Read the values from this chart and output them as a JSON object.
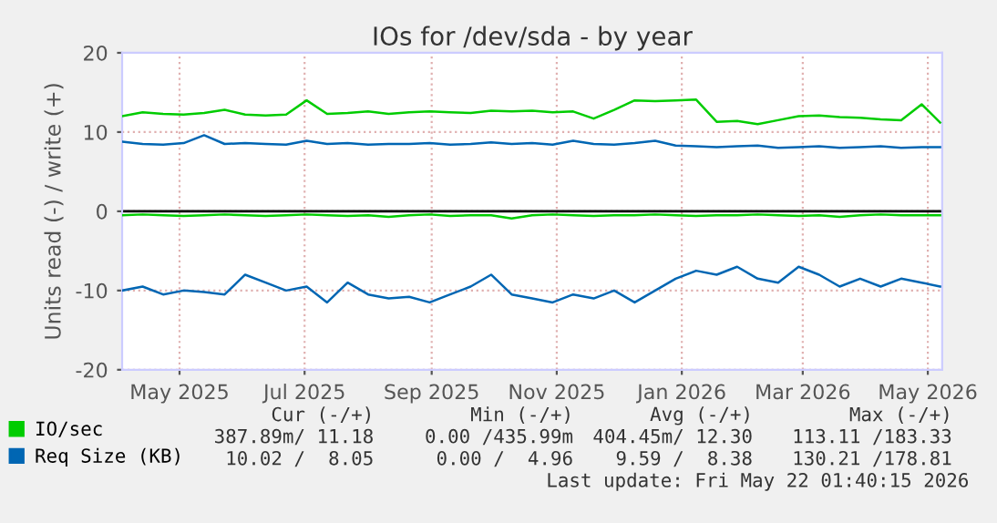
{
  "chart_data": {
    "type": "line",
    "title": "IOs for /dev/sda - by year",
    "ylabel": "Units read (-) / write (+)",
    "x": [
      "2025-04-17",
      "2025-04-27",
      "2025-05-07",
      "2025-05-17",
      "2025-05-27",
      "2025-06-06",
      "2025-06-16",
      "2025-06-26",
      "2025-07-06",
      "2025-07-16",
      "2025-07-26",
      "2025-08-05",
      "2025-08-15",
      "2025-08-25",
      "2025-09-04",
      "2025-09-14",
      "2025-09-24",
      "2025-10-04",
      "2025-10-14",
      "2025-10-24",
      "2025-11-03",
      "2025-11-13",
      "2025-11-23",
      "2025-12-03",
      "2025-12-13",
      "2025-12-23",
      "2026-01-02",
      "2026-01-12",
      "2026-01-22",
      "2026-02-01",
      "2026-02-11",
      "2026-02-21",
      "2026-03-03",
      "2026-03-13",
      "2026-03-23",
      "2026-04-02",
      "2026-04-12",
      "2026-04-22",
      "2026-05-02",
      "2026-05-12",
      "2026-05-21"
    ],
    "series": [
      {
        "name": "IO/sec",
        "color": "#00cc00",
        "values": [
          12.0,
          12.5,
          12.3,
          12.2,
          12.4,
          12.8,
          12.2,
          12.1,
          12.2,
          14.0,
          12.3,
          12.4,
          12.6,
          12.3,
          12.5,
          12.6,
          12.5,
          12.4,
          12.7,
          12.6,
          12.7,
          12.5,
          12.6,
          11.7,
          12.8,
          14.0,
          13.9,
          14.0,
          14.1,
          11.3,
          11.4,
          11.0,
          11.5,
          12.0,
          12.1,
          11.9,
          11.8,
          11.6,
          11.5,
          13.5,
          11.2
        ]
      },
      {
        "color": "#00cc00",
        "values": [
          -0.5,
          -0.4,
          -0.5,
          -0.6,
          -0.5,
          -0.4,
          -0.5,
          -0.6,
          -0.5,
          -0.4,
          -0.5,
          -0.6,
          -0.5,
          -0.7,
          -0.5,
          -0.4,
          -0.6,
          -0.5,
          -0.5,
          -0.9,
          -0.5,
          -0.4,
          -0.5,
          -0.6,
          -0.5,
          -0.5,
          -0.4,
          -0.5,
          -0.6,
          -0.5,
          -0.5,
          -0.4,
          -0.5,
          -0.6,
          -0.5,
          -0.7,
          -0.5,
          -0.4,
          -0.5,
          -0.5,
          -0.5
        ]
      },
      {
        "name": "Req Size (KB)",
        "color": "#0066b3",
        "values": [
          8.8,
          8.5,
          8.4,
          8.6,
          9.6,
          8.5,
          8.6,
          8.5,
          8.4,
          8.9,
          8.5,
          8.6,
          8.4,
          8.5,
          8.5,
          8.6,
          8.4,
          8.5,
          8.7,
          8.5,
          8.6,
          8.4,
          8.9,
          8.5,
          8.4,
          8.6,
          8.9,
          8.3,
          8.2,
          8.1,
          8.2,
          8.3,
          8.0,
          8.1,
          8.2,
          8.0,
          8.1,
          8.2,
          8.0,
          8.1,
          8.1
        ]
      },
      {
        "color": "#0066b3",
        "values": [
          -10.0,
          -9.5,
          -10.5,
          -10.0,
          -10.2,
          -10.5,
          -8.0,
          -9.0,
          -10.0,
          -9.5,
          -11.5,
          -9.0,
          -10.5,
          -11.0,
          -10.8,
          -11.5,
          -10.5,
          -9.5,
          -8.0,
          -10.5,
          -11.0,
          -11.5,
          -10.5,
          -11.0,
          -10.0,
          -11.5,
          -10.0,
          -8.5,
          -7.5,
          -8.0,
          -7.0,
          -8.5,
          -9.0,
          -7.0,
          -8.0,
          -9.5,
          -8.5,
          -9.5,
          -8.5,
          -9.0,
          -9.5
        ]
      }
    ],
    "xlim": [
      "2025-04-17",
      "2026-05-22"
    ],
    "xticks": [
      {
        "value": "2025-05-15",
        "label": "May 2025"
      },
      {
        "value": "2025-07-15",
        "label": "Jul 2025"
      },
      {
        "value": "2025-09-15",
        "label": "Sep 2025"
      },
      {
        "value": "2025-11-15",
        "label": "Nov 2025"
      },
      {
        "value": "2026-01-15",
        "label": "Jan 2026"
      },
      {
        "value": "2026-03-15",
        "label": "Mar 2026"
      },
      {
        "value": "2026-05-15",
        "label": "May 2026"
      }
    ],
    "ylim": [
      -20,
      20
    ],
    "yticks": [
      -20,
      -10,
      0,
      10,
      20
    ],
    "ref_lines": [
      {
        "axis": "y",
        "value": 0,
        "color": "#000000"
      }
    ],
    "grid": true,
    "legend": "bottom left",
    "marker": "none",
    "line_style": "solid",
    "annotations": [
      "Cur (-/+)",
      "Min (-/+)",
      "Avg (-/+)",
      "Max (-/+)",
      "387.89m/ 11.18",
      "0.00 /435.99m",
      "404.45m/ 12.30",
      "113.11 /183.33",
      "10.02 /  8.05",
      "0.00 /  4.96",
      "9.59 /  8.38",
      "130.21 /178.81",
      "Last update: Fri May 22 01:40:15 2026"
    ]
  }
}
